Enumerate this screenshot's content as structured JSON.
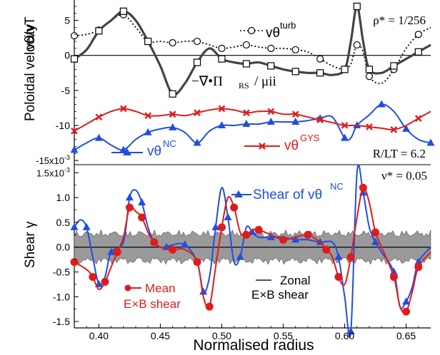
{
  "chart_data": [
    {
      "type": "line",
      "panel": "top",
      "ylabel": "Poloidal velocity  vθ/vT",
      "x_range": [
        0.38,
        0.67
      ],
      "y_range": [
        -15.5,
        7.5
      ],
      "y_scale_note": "×10⁻³",
      "y_tick_labels": [
        "5",
        "0",
        "-5",
        "-10",
        "-15x10-3"
      ],
      "y_ticks": [
        5,
        0,
        -5,
        -10,
        -15
      ],
      "annotations": [
        "ρ* = 1/256",
        "R/LT = 6.2"
      ],
      "series": [
        {
          "name": "vθturb",
          "color": "#000000",
          "style": "dotted-circles",
          "x": [
            0.38,
            0.39,
            0.4,
            0.41,
            0.42,
            0.43,
            0.44,
            0.45,
            0.46,
            0.47,
            0.48,
            0.49,
            0.5,
            0.51,
            0.52,
            0.53,
            0.54,
            0.55,
            0.56,
            0.57,
            0.58,
            0.59,
            0.6,
            0.605,
            0.61,
            0.615,
            0.62,
            0.63,
            0.64,
            0.65,
            0.66,
            0.67
          ],
          "y": [
            2.8,
            3.0,
            3.6,
            5.0,
            5.8,
            4.0,
            2.0,
            2.0,
            1.8,
            2.0,
            2.0,
            1.5,
            1.0,
            1.2,
            1.5,
            1.2,
            1.0,
            1.0,
            0.8,
            0.5,
            -0.5,
            -1.5,
            -2.0,
            -1.2,
            1.5,
            0.5,
            -3.0,
            -4.0,
            -2.0,
            1.0,
            3.0,
            4.0
          ]
        },
        {
          "name": "−∇•ΠRS / μii",
          "color": "#444444",
          "style": "thick-squares",
          "x": [
            0.38,
            0.39,
            0.4,
            0.41,
            0.42,
            0.43,
            0.44,
            0.45,
            0.46,
            0.47,
            0.48,
            0.49,
            0.5,
            0.51,
            0.52,
            0.53,
            0.54,
            0.55,
            0.56,
            0.57,
            0.58,
            0.59,
            0.6,
            0.605,
            0.61,
            0.615,
            0.62,
            0.63,
            0.64,
            0.65,
            0.66,
            0.67
          ],
          "y": [
            -0.5,
            0.8,
            3.5,
            5.0,
            6.3,
            5.0,
            2.0,
            -1.5,
            -5.5,
            -4.0,
            -1.0,
            1.0,
            -0.5,
            -1.0,
            -1.2,
            -1.0,
            -1.5,
            -2.0,
            -2.3,
            -2.5,
            -2.5,
            -2.8,
            -2.0,
            2.0,
            7.0,
            2.0,
            -2.0,
            -2.5,
            -1.5,
            -0.5,
            0.5,
            1.5
          ]
        },
        {
          "name": "vθNC",
          "color": "#1f4fe0",
          "style": "triangles",
          "x": [
            0.38,
            0.39,
            0.4,
            0.41,
            0.42,
            0.43,
            0.44,
            0.45,
            0.46,
            0.47,
            0.48,
            0.49,
            0.5,
            0.51,
            0.52,
            0.53,
            0.54,
            0.55,
            0.56,
            0.57,
            0.58,
            0.59,
            0.6,
            0.605,
            0.61,
            0.62,
            0.63,
            0.64,
            0.65,
            0.66,
            0.67
          ],
          "y": [
            -13.5,
            -12.5,
            -11.8,
            -12.8,
            -13.5,
            -12.0,
            -11.0,
            -10.5,
            -10.3,
            -11.0,
            -12.5,
            -10.8,
            -10.0,
            -10.0,
            -9.8,
            -9.8,
            -9.5,
            -9.5,
            -9.5,
            -9.3,
            -9.0,
            -8.8,
            -11.8,
            -11.8,
            -10.0,
            -8.5,
            -7.0,
            -8.0,
            -10.5,
            -12.0,
            -12.5
          ]
        },
        {
          "name": "vθGYS",
          "color": "#e01b1b",
          "style": "crosses",
          "x": [
            0.38,
            0.39,
            0.4,
            0.41,
            0.42,
            0.43,
            0.44,
            0.45,
            0.46,
            0.47,
            0.48,
            0.49,
            0.5,
            0.51,
            0.52,
            0.53,
            0.54,
            0.55,
            0.56,
            0.57,
            0.58,
            0.59,
            0.6,
            0.61,
            0.62,
            0.63,
            0.64,
            0.65,
            0.66,
            0.67
          ],
          "y": [
            -10.8,
            -9.8,
            -8.8,
            -8.0,
            -7.6,
            -8.0,
            -8.6,
            -8.6,
            -8.4,
            -8.6,
            -8.2,
            -7.8,
            -7.6,
            -7.8,
            -8.2,
            -8.0,
            -8.0,
            -8.4,
            -8.4,
            -8.8,
            -9.2,
            -9.6,
            -10.0,
            -10.0,
            -10.2,
            -10.4,
            -10.6,
            -10.0,
            -9.0,
            -8.0
          ]
        }
      ]
    },
    {
      "type": "line",
      "panel": "bottom",
      "ylabel": "Shear γ",
      "xlabel": "Normalised radius",
      "x_range": [
        0.38,
        0.67
      ],
      "y_range": [
        -1.6,
        1.65
      ],
      "y_scale_note": "×10⁻³",
      "x_ticks": [
        0.4,
        0.45,
        0.5,
        0.55,
        0.6,
        0.65
      ],
      "x_tick_labels": [
        "0.40",
        "0.45",
        "0.50",
        "0.55",
        "0.60",
        "0.65"
      ],
      "y_ticks": [
        1.5,
        1.0,
        0.5,
        0.0,
        -0.5,
        -1.0,
        -1.5
      ],
      "y_tick_labels": [
        "1.5x10-3",
        "1.0",
        "0.5",
        "0.0",
        "-0.5",
        "-1.0",
        "-1.5"
      ],
      "annotations": [
        "ν* = 0.05"
      ],
      "series": [
        {
          "name": "Zonal E×B shear",
          "color": "#999999",
          "style": "band",
          "band_halfwidth": 0.35
        },
        {
          "name": "Shear of vθNC",
          "color": "#1f4fe0",
          "style": "triangles",
          "x": [
            0.38,
            0.385,
            0.39,
            0.395,
            0.4,
            0.405,
            0.41,
            0.42,
            0.425,
            0.43,
            0.435,
            0.44,
            0.445,
            0.45,
            0.455,
            0.46,
            0.47,
            0.48,
            0.485,
            0.49,
            0.495,
            0.5,
            0.505,
            0.51,
            0.515,
            0.52,
            0.525,
            0.53,
            0.54,
            0.55,
            0.56,
            0.57,
            0.58,
            0.59,
            0.595,
            0.6,
            0.605,
            0.61,
            0.615,
            0.62,
            0.625,
            0.63,
            0.64,
            0.645,
            0.65,
            0.655,
            0.66,
            0.67
          ],
          "y": [
            0.4,
            0.55,
            0.4,
            -0.2,
            -0.75,
            -0.6,
            -0.1,
            0.1,
            1.0,
            1.15,
            0.9,
            0.4,
            0.1,
            0.0,
            0.0,
            0.05,
            0.05,
            -0.3,
            -0.9,
            -0.6,
            0.4,
            1.2,
            0.6,
            -0.3,
            -0.2,
            0.4,
            0.3,
            0.2,
            0.2,
            0.2,
            0.15,
            0.15,
            0.1,
            0.1,
            -0.2,
            -1.0,
            -1.7,
            1.5,
            1.1,
            0.4,
            0.1,
            -0.1,
            -0.5,
            -1.2,
            -1.1,
            -0.8,
            -0.3,
            0.0
          ]
        },
        {
          "name": "Mean E×B shear",
          "color": "#e01b1b",
          "style": "dots",
          "x": [
            0.38,
            0.39,
            0.395,
            0.4,
            0.405,
            0.41,
            0.415,
            0.42,
            0.425,
            0.43,
            0.435,
            0.44,
            0.445,
            0.45,
            0.46,
            0.47,
            0.48,
            0.485,
            0.49,
            0.495,
            0.5,
            0.505,
            0.51,
            0.515,
            0.52,
            0.525,
            0.53,
            0.54,
            0.55,
            0.56,
            0.57,
            0.58,
            0.585,
            0.59,
            0.595,
            0.6,
            0.605,
            0.61,
            0.615,
            0.62,
            0.625,
            0.63,
            0.64,
            0.645,
            0.65,
            0.655,
            0.66,
            0.67
          ],
          "y": [
            -0.3,
            -0.45,
            -0.6,
            -0.85,
            -0.7,
            -0.4,
            -0.1,
            0.2,
            0.8,
            0.72,
            0.6,
            0.3,
            0.1,
            0.0,
            -0.05,
            -0.05,
            -0.3,
            -1.0,
            -1.2,
            -0.4,
            0.4,
            1.0,
            0.8,
            0.3,
            0.25,
            0.35,
            0.35,
            0.25,
            0.15,
            0.2,
            0.25,
            0.1,
            -0.05,
            -0.2,
            -0.6,
            -0.75,
            -0.2,
            0.6,
            1.2,
            0.9,
            0.3,
            0.0,
            -0.6,
            -1.2,
            -1.3,
            -0.9,
            -0.4,
            -0.1
          ]
        }
      ]
    }
  ],
  "labels": {
    "top_ylabel": "Poloidal velocity",
    "top_ylabel_frac": "vθ/vT",
    "bottom_ylabel": "Shear γ",
    "xlabel": "Normalised radius",
    "rho_star": "ρ* = 1/256",
    "r_over_lt": "R/LT = 6.2",
    "nu_star": "ν* = 0.05",
    "legend_vturb": "vθ",
    "legend_vturb_sup": "turb",
    "legend_rs": "−∇•Π",
    "legend_rs_sub": "RS",
    "legend_rs_tail": " / μii",
    "legend_nc": "vθ",
    "legend_nc_sup": "NC",
    "legend_gys": "vθ",
    "legend_gys_sup": "GYS",
    "legend_shear_nc": "Shear of vθ",
    "legend_shear_nc_sup": "NC",
    "legend_zonal": "Zonal",
    "legend_zonal2": "E×B shear",
    "legend_mean": "Mean",
    "legend_mean2": "E×B shear"
  }
}
